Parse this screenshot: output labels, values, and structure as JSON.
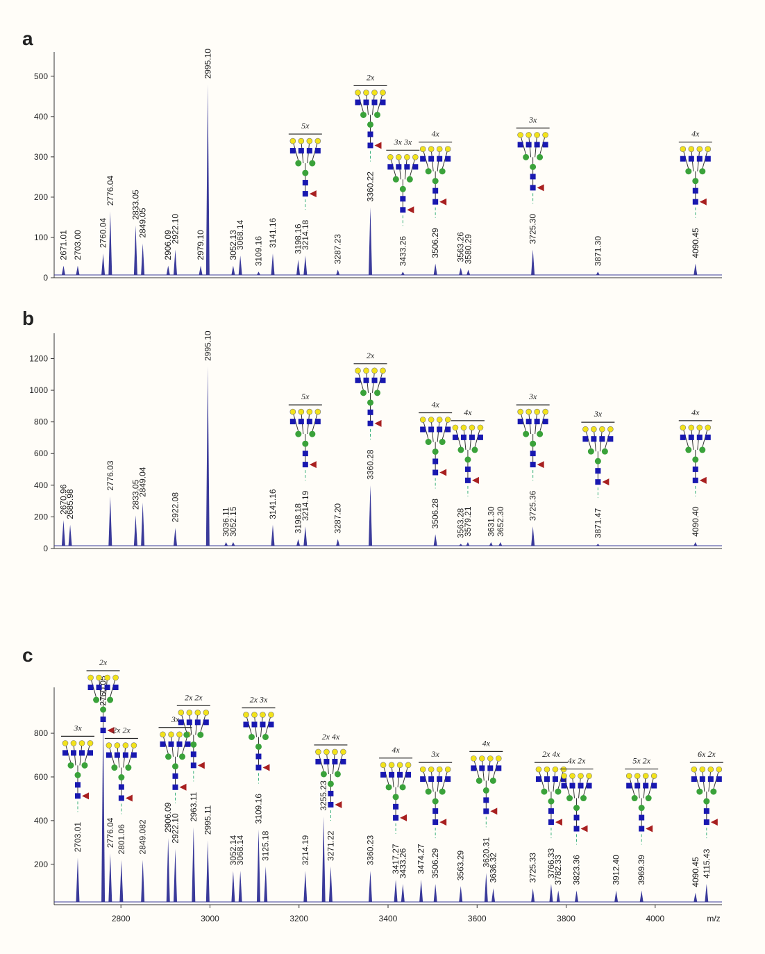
{
  "chart_data": [
    {
      "type": "spectrum",
      "panel_label": "a",
      "color": "#3a3a9a",
      "xlim": [
        2650,
        4150
      ],
      "ylim": [
        0,
        560
      ],
      "yticks": [
        0,
        100,
        200,
        300,
        400,
        500
      ],
      "x": [
        2671.01,
        2703.0,
        2760.04,
        2776.04,
        2833.05,
        2849.05,
        2906.09,
        2922.1,
        2979.1,
        2995.1,
        3052.13,
        3068.14,
        3109.16,
        3141.16,
        3198.16,
        3214.18,
        3287.23,
        3360.22,
        3433.26,
        3506.29,
        3563.26,
        3580.29,
        3725.3,
        3871.3,
        4090.45
      ],
      "x_labels": [
        "2671.01",
        "2703.00",
        "2760.04",
        "2776.04",
        "2833.05",
        "2849.05",
        "2906.09",
        "2922.10",
        "2979.10",
        "2995.10",
        "3052.13",
        "3068.14",
        "3109.16",
        "3141.16",
        "3198.16",
        "3214.18",
        "3287.23",
        "3360.22",
        "3433.26",
        "3506.29",
        "3563.26",
        "3580.29",
        "3725.30",
        "3871.30",
        "4090.45"
      ],
      "values": [
        30,
        30,
        60,
        165,
        130,
        85,
        30,
        70,
        30,
        480,
        30,
        55,
        15,
        60,
        45,
        55,
        20,
        175,
        15,
        35,
        25,
        20,
        70,
        15,
        35
      ],
      "annotations": [
        null,
        null,
        null,
        null,
        null,
        null,
        null,
        null,
        null,
        null,
        null,
        null,
        null,
        null,
        null,
        "5x",
        null,
        "2x",
        "3x 3x",
        "4x",
        null,
        null,
        "3x",
        null,
        "4x"
      ]
    },
    {
      "type": "spectrum",
      "panel_label": "b",
      "color": "#3a3a9a",
      "xlim": [
        2650,
        4150
      ],
      "ylim": [
        0,
        1360
      ],
      "yticks": [
        0,
        200,
        400,
        600,
        800,
        1000,
        1200
      ],
      "x": [
        2670.96,
        2685.98,
        2776.03,
        2833.05,
        2849.04,
        2922.08,
        2995.1,
        3036.11,
        3052.15,
        3141.16,
        3198.18,
        3214.19,
        3287.2,
        3360.28,
        3506.28,
        3563.28,
        3579.21,
        3631.3,
        3652.3,
        3725.36,
        3871.47,
        4090.4
      ],
      "x_labels": [
        "2670.96",
        "2685.98",
        "2776.03",
        "2833.05",
        "2849.04",
        "2922.08",
        "2995.10",
        "3036.11",
        "3052.15",
        "3141.16",
        "3198.18",
        "3214.19",
        "3287.20",
        "3360.28",
        "3506.28",
        "3563.28",
        "3579.21",
        "3631.30",
        "3652.30",
        "3725.36",
        "3871.47",
        "4090.40"
      ],
      "values": [
        180,
        150,
        330,
        210,
        290,
        130,
        1150,
        40,
        40,
        150,
        60,
        140,
        60,
        400,
        90,
        30,
        40,
        40,
        40,
        140,
        30,
        40
      ],
      "annotations": [
        null,
        null,
        null,
        null,
        null,
        null,
        null,
        null,
        null,
        null,
        null,
        "5x",
        null,
        "2x",
        "4x",
        null,
        "4x",
        null,
        null,
        "3x",
        "3x",
        "4x"
      ]
    },
    {
      "type": "spectrum",
      "panel_label": "c",
      "color": "#3a3a9a",
      "x_label": "m/z",
      "xlim": [
        2650,
        4150
      ],
      "xticks": [
        2800,
        3000,
        3200,
        3400,
        3600,
        3800,
        4000
      ],
      "ylim": [
        15,
        1010
      ],
      "yticks": [
        200,
        400,
        600,
        800
      ],
      "x": [
        2703.01,
        2760.05,
        2776.04,
        2801.06,
        2849.082,
        2906.09,
        2922.1,
        2963.11,
        2995.11,
        3052.14,
        3068.14,
        3109.16,
        3125.18,
        3214.19,
        3255.23,
        3271.22,
        3360.23,
        3417.27,
        3433.26,
        3474.27,
        3506.29,
        3563.29,
        3620.31,
        3636.32,
        3725.33,
        3766.33,
        3782.33,
        3823.36,
        3912.4,
        3969.39,
        4090.45,
        4115.43
      ],
      "x_labels": [
        "2703.01",
        "2760.05",
        "2776.04",
        "2801.06",
        "2849.082",
        "2906.09",
        "2922.10",
        "2963.11",
        "2995.11",
        "3052.14",
        "3068.14",
        "3109.16",
        "3125.18",
        "3214.19",
        "3255.23",
        "3271.22",
        "3360.23",
        "3417.27",
        "3433.26",
        "3474.27",
        "3506.29",
        "3563.29",
        "3620.31",
        "3636.32",
        "3725.33",
        "3766.33",
        "3782.33",
        "3823.36",
        "3912.40",
        "3969.39",
        "4090.45",
        "4115.43"
      ],
      "values": [
        230,
        900,
        250,
        220,
        220,
        320,
        270,
        370,
        310,
        170,
        170,
        360,
        190,
        170,
        420,
        190,
        170,
        130,
        110,
        130,
        110,
        100,
        160,
        90,
        90,
        110,
        80,
        80,
        80,
        80,
        70,
        110
      ],
      "annotations": [
        "3x",
        "2x",
        null,
        "2x 2x",
        null,
        null,
        "3x",
        "2x 2x",
        null,
        null,
        null,
        "2x 3x",
        null,
        null,
        null,
        "2x 4x",
        null,
        "4x",
        null,
        null,
        "3x",
        null,
        "4x",
        null,
        null,
        "2x 4x",
        null,
        "4x 2x",
        null,
        "5x 2x",
        null,
        "6x 2x"
      ]
    }
  ]
}
